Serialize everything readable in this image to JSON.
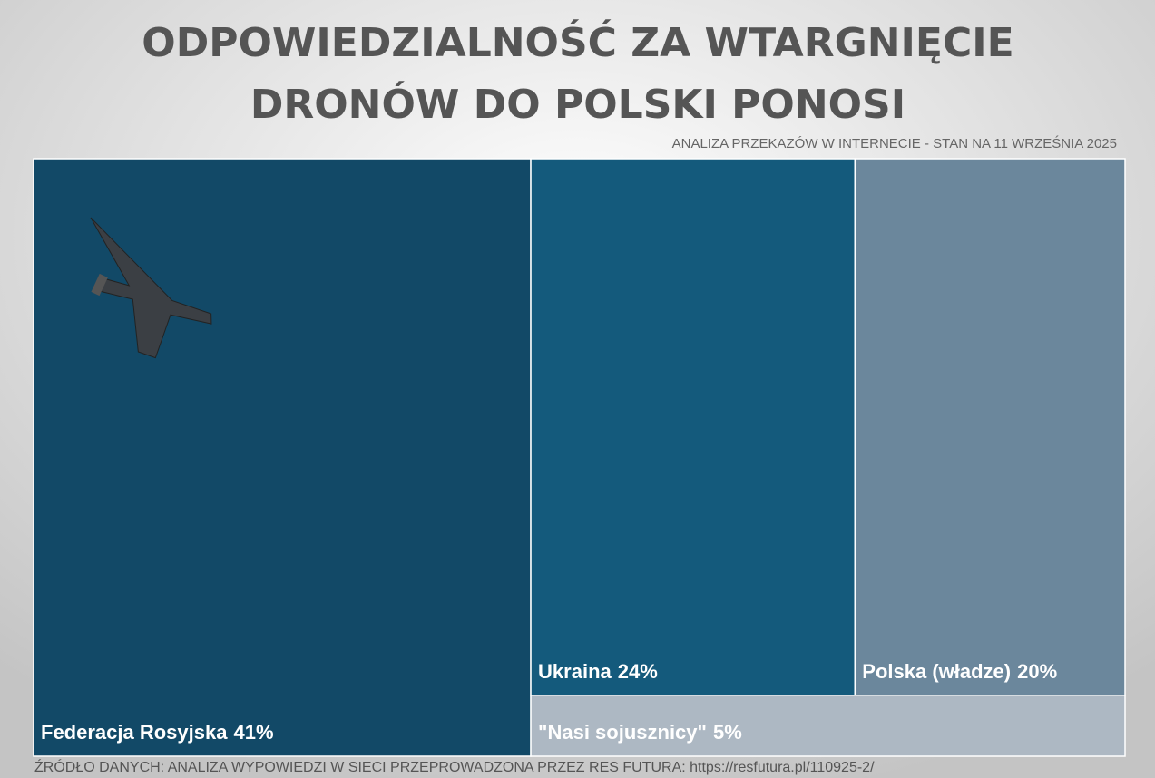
{
  "chart_data": {
    "type": "treemap",
    "title": [
      "ODPOWIEDZIALNOŚĆ ZA WTARGNIĘCIE",
      "DRONÓW DO POLSKI PONOSI"
    ],
    "subtitle": "ANALIZA PRZEKAZÓW W INTERNECIE - STAN NA 11 WRZEŚNIA 2025",
    "source": "ŹRÓDŁO DANYCH: ANALIZA WYPOWIEDZI W SIECI PRZEPROWADZONA PRZEZ RES FUTURA: https://resfutura.pl/110925-2/",
    "categories": [
      "Federacja Rosyjska",
      "Ukraina",
      "Polska (władze)",
      "\"Nasi sojusznicy\""
    ],
    "values": [
      41,
      24,
      20,
      5
    ],
    "value_labels": [
      "41%",
      "24%",
      "20%",
      "5%"
    ],
    "colors": [
      "#124967",
      "#145a7c",
      "#6b879c",
      "#adb8c3"
    ]
  }
}
